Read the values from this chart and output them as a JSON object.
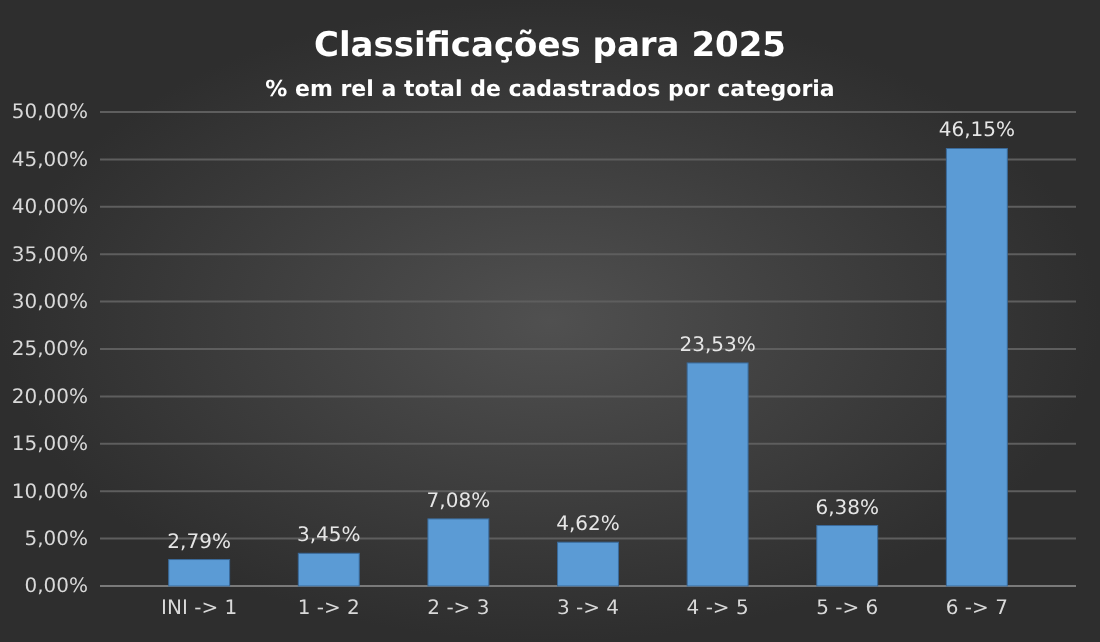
{
  "chart_data": {
    "type": "bar",
    "title": "Classificações para 2025",
    "subtitle": "% em rel a total de cadastrados por categoria",
    "categories": [
      "INI -> 1",
      "1 -> 2",
      "2 -> 3",
      "3 -> 4",
      "4 -> 5",
      "5 -> 6",
      "6 -> 7"
    ],
    "values": [
      2.79,
      3.45,
      7.08,
      4.62,
      23.53,
      6.38,
      46.15
    ],
    "value_labels": [
      "2,79%",
      "3,45%",
      "7,08%",
      "4,62%",
      "23,53%",
      "6,38%",
      "46,15%"
    ],
    "color": "#5b9bd5",
    "ylim": [
      0,
      50
    ],
    "yticks": [
      {
        "value": 0,
        "label": "0,00%"
      },
      {
        "value": 5,
        "label": "5,00%"
      },
      {
        "value": 10,
        "label": "10,00%"
      },
      {
        "value": 15,
        "label": "15,00%"
      },
      {
        "value": 20,
        "label": "20,00%"
      },
      {
        "value": 25,
        "label": "25,00%"
      },
      {
        "value": 30,
        "label": "30,00%"
      },
      {
        "value": 35,
        "label": "35,00%"
      },
      {
        "value": 40,
        "label": "40,00%"
      },
      {
        "value": 45,
        "label": "45,00%"
      },
      {
        "value": 50,
        "label": "50,00%"
      }
    ],
    "grid": "y"
  }
}
